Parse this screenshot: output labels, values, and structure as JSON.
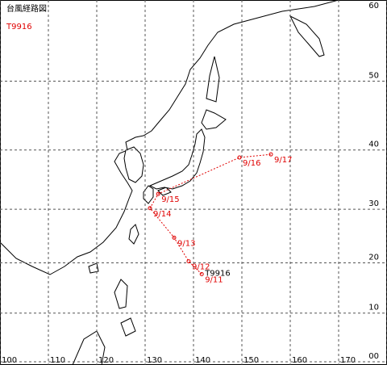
{
  "header": {
    "title": "台風経路図",
    "storm_id": "T9916"
  },
  "map": {
    "lon_ticks": [
      100,
      110,
      120,
      130,
      140,
      150,
      160,
      170,
      {
        "value": 180,
        "label": "00"
      }
    ],
    "lat_ticks": [
      60,
      50,
      40,
      30,
      20,
      10,
      {
        "value": 0,
        "label": "00"
      }
    ]
  },
  "track": {
    "name": "T9916",
    "color": "#e00000",
    "points": [
      {
        "label": "9/11",
        "lon": 141.7,
        "lat": 17.8
      },
      {
        "label": "9/12",
        "lon": 139.0,
        "lat": 20.3
      },
      {
        "label": "9/13",
        "lon": 136.0,
        "lat": 24.8
      },
      {
        "label": "9/14",
        "lon": 131.0,
        "lat": 30.2
      },
      {
        "label": "9/15",
        "lon": 132.7,
        "lat": 32.7
      },
      {
        "label": "9/16",
        "lon": 149.5,
        "lat": 38.8
      },
      {
        "label": "9/17",
        "lon": 156.0,
        "lat": 39.3
      }
    ]
  }
}
